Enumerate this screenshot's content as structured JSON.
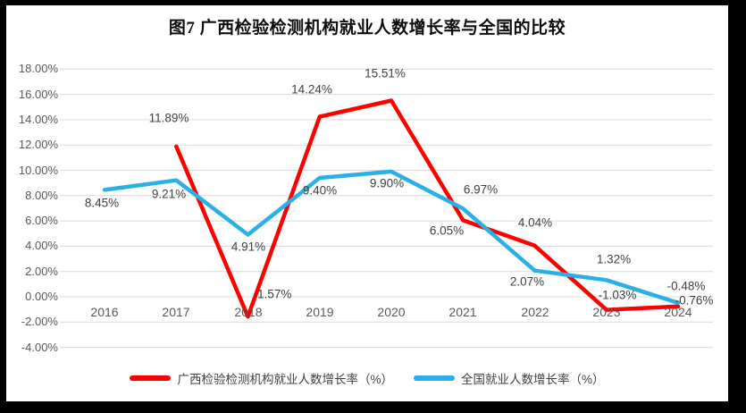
{
  "title": "图7 广西检验检测机构就业人数增长率与全国的比较",
  "chart_data": {
    "type": "line",
    "categories": [
      "2016",
      "2017",
      "2018",
      "2019",
      "2020",
      "2021",
      "2022",
      "2023",
      "2024"
    ],
    "series": [
      {
        "name": "广西检验检测机构就业人数增长率（%）",
        "color": "#fe0000",
        "values": [
          null,
          11.89,
          -1.57,
          14.24,
          15.51,
          6.05,
          4.04,
          -1.03,
          -0.76
        ],
        "labels": [
          "",
          "11.89%",
          "-1.57%",
          "14.24%",
          "15.51%",
          "6.05%",
          "4.04%",
          "-1.03%",
          "-0.76%"
        ]
      },
      {
        "name": "全国就业人数增长率（%）",
        "color": "#2bb0e6",
        "values": [
          8.45,
          9.21,
          4.91,
          9.4,
          9.9,
          6.97,
          2.07,
          1.32,
          -0.48
        ],
        "labels": [
          "8.45%",
          "9.21%",
          "4.91%",
          "9.40%",
          "9.90%",
          "6.97%",
          "2.07%",
          "1.32%",
          "-0.48%"
        ]
      }
    ],
    "xlabel": "",
    "ylabel": "",
    "ylim": [
      -4,
      18
    ],
    "y_axis": {
      "tick_values": [
        18,
        16,
        14,
        12,
        10,
        8,
        6,
        4,
        2,
        0,
        -2,
        -4
      ],
      "tick_labels": [
        "18.00%",
        "16.00%",
        "14.00%",
        "12.00%",
        "10.00%",
        "8.00%",
        "6.00%",
        "4.00%",
        "2.00%",
        "0.00%",
        "-2.00%",
        "-4.00%"
      ]
    },
    "grid": true,
    "legend_position": "bottom"
  },
  "colors": {
    "background": "#000000",
    "plot_background": "#ffffff",
    "gridline": "#d9d9d9",
    "axis_text": "#595959",
    "data_label_text": "#404040",
    "series_guangxi": "#fe0000",
    "series_national": "#2bb0e6"
  }
}
